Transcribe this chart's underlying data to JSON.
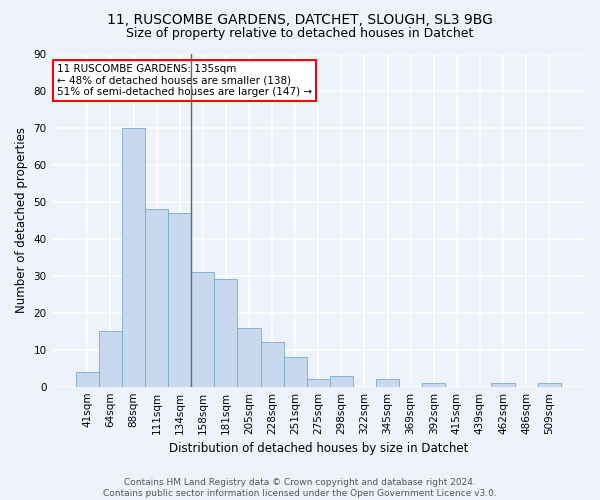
{
  "title_line1": "11, RUSCOMBE GARDENS, DATCHET, SLOUGH, SL3 9BG",
  "title_line2": "Size of property relative to detached houses in Datchet",
  "xlabel": "Distribution of detached houses by size in Datchet",
  "ylabel": "Number of detached properties",
  "categories": [
    "41sqm",
    "64sqm",
    "88sqm",
    "111sqm",
    "134sqm",
    "158sqm",
    "181sqm",
    "205sqm",
    "228sqm",
    "251sqm",
    "275sqm",
    "298sqm",
    "322sqm",
    "345sqm",
    "369sqm",
    "392sqm",
    "415sqm",
    "439sqm",
    "462sqm",
    "486sqm",
    "509sqm"
  ],
  "values": [
    4,
    15,
    70,
    48,
    47,
    31,
    29,
    16,
    12,
    8,
    2,
    3,
    0,
    2,
    0,
    1,
    0,
    0,
    1,
    0,
    1
  ],
  "bar_color": "#c8d8ee",
  "bar_edge_color": "#7aaac8",
  "vline_color": "#666666",
  "annotation_line1": "11 RUSCOMBE GARDENS: 135sqm",
  "annotation_line2": "← 48% of detached houses are smaller (138)",
  "annotation_line3": "51% of semi-detached houses are larger (147) →",
  "annotation_box_color": "white",
  "annotation_box_edge": "red",
  "ylim": [
    0,
    90
  ],
  "yticks": [
    0,
    10,
    20,
    30,
    40,
    50,
    60,
    70,
    80,
    90
  ],
  "footer_line1": "Contains HM Land Registry data © Crown copyright and database right 2024.",
  "footer_line2": "Contains public sector information licensed under the Open Government Licence v3.0.",
  "background_color": "#eef2fb",
  "grid_color": "#ffffff",
  "title_fontsize": 10,
  "subtitle_fontsize": 9,
  "axis_label_fontsize": 8.5,
  "tick_fontsize": 7.5,
  "footer_fontsize": 6.5,
  "annot_fontsize": 7.5
}
